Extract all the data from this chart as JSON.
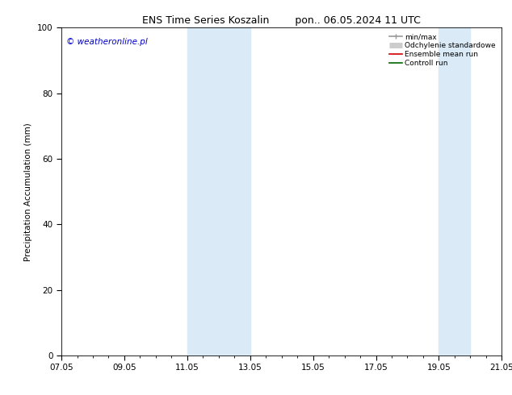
{
  "title_left": "ENS Time Series Koszalin",
  "title_right": "pon.. 06.05.2024 11 UTC",
  "ylabel": "Precipitation Accumulation (mm)",
  "watermark": "© weatheronline.pl",
  "watermark_color": "#0000cc",
  "ylim": [
    0,
    100
  ],
  "yticks": [
    0,
    20,
    40,
    60,
    80,
    100
  ],
  "xlim": [
    0,
    14
  ],
  "xtick_labels": [
    "07.05",
    "09.05",
    "11.05",
    "13.05",
    "15.05",
    "17.05",
    "19.05",
    "21.05"
  ],
  "xtick_positions_days": [
    0,
    2,
    4,
    6,
    8,
    10,
    12,
    14
  ],
  "shaded_bands": [
    {
      "x_start_day": 4.0,
      "x_end_day": 6.0,
      "color": "#daeaf7"
    },
    {
      "x_start_day": 12.0,
      "x_end_day": 13.0,
      "color": "#daeaf7"
    }
  ],
  "legend_entries": [
    {
      "label": "min/max",
      "color": "#999999",
      "lw": 1.2
    },
    {
      "label": "Odchylenie standardowe",
      "color": "#cccccc",
      "lw": 5
    },
    {
      "label": "Ensemble mean run",
      "color": "#cc0000",
      "lw": 1.2
    },
    {
      "label": "Controll run",
      "color": "#006600",
      "lw": 1.2
    }
  ],
  "bg_color": "#ffffff",
  "plot_bg_color": "#ffffff",
  "title_fontsize": 9,
  "axis_label_fontsize": 7.5,
  "tick_fontsize": 7.5,
  "legend_fontsize": 6.5,
  "watermark_fontsize": 7.5
}
